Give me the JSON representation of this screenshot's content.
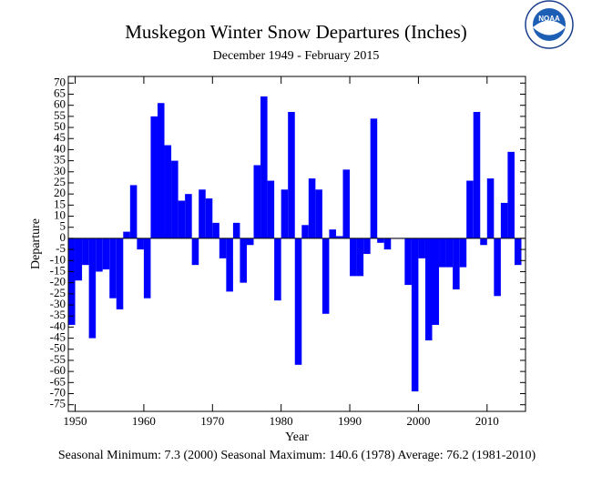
{
  "chart_data": {
    "type": "bar",
    "title": "Muskegon Winter Snow Departures (Inches)",
    "subtitle": "December 1949 - February 2015",
    "y_label": "Departure",
    "x_label": "Year",
    "note": "Seasonal Minimum: 7.3 (2000) Seasonal Maximum: 140.6 (1978) Average: 76.2 (1981-2010)",
    "logo_text": "NOAA",
    "color": "#0000ff",
    "x": [
      1950,
      1951,
      1952,
      1953,
      1954,
      1955,
      1956,
      1957,
      1958,
      1959,
      1960,
      1961,
      1962,
      1963,
      1964,
      1965,
      1966,
      1967,
      1968,
      1969,
      1970,
      1971,
      1972,
      1973,
      1974,
      1975,
      1976,
      1977,
      1978,
      1979,
      1980,
      1981,
      1982,
      1983,
      1984,
      1985,
      1986,
      1987,
      1988,
      1989,
      1990,
      1991,
      1992,
      1993,
      1994,
      1995,
      1996,
      1997,
      1998,
      1999,
      2000,
      2001,
      2002,
      2003,
      2004,
      2005,
      2006,
      2007,
      2008,
      2009,
      2010,
      2011,
      2012,
      2013,
      2014,
      2015
    ],
    "values": [
      -39,
      -19,
      -12,
      -45,
      -15,
      -14,
      -27,
      -32,
      3,
      24,
      -5,
      -27,
      55,
      61,
      42,
      35,
      17,
      20,
      -12,
      22,
      18,
      7,
      -9,
      -24,
      7,
      -20,
      -3,
      33,
      64,
      26,
      -28,
      22,
      57,
      -57,
      6,
      27,
      22,
      -34,
      4,
      1,
      31,
      -17,
      -17,
      -7,
      54,
      -2,
      -5,
      0,
      0,
      -21,
      -69,
      -9,
      -46,
      -39,
      -13,
      -13,
      -23,
      -13,
      26,
      57,
      -3,
      27,
      -26,
      16,
      39,
      -12
    ],
    "xlim": [
      1949,
      2015.6
    ],
    "xticks": [
      1950,
      1960,
      1970,
      1980,
      1990,
      2000,
      2010
    ],
    "ylim": [
      -78,
      73
    ],
    "yticks": [
      -75,
      -70,
      -65,
      -60,
      -55,
      -50,
      -45,
      -40,
      -35,
      -30,
      -25,
      -20,
      -15,
      -10,
      -5,
      0,
      5,
      10,
      15,
      20,
      25,
      30,
      35,
      40,
      45,
      50,
      55,
      60,
      65,
      70
    ]
  }
}
